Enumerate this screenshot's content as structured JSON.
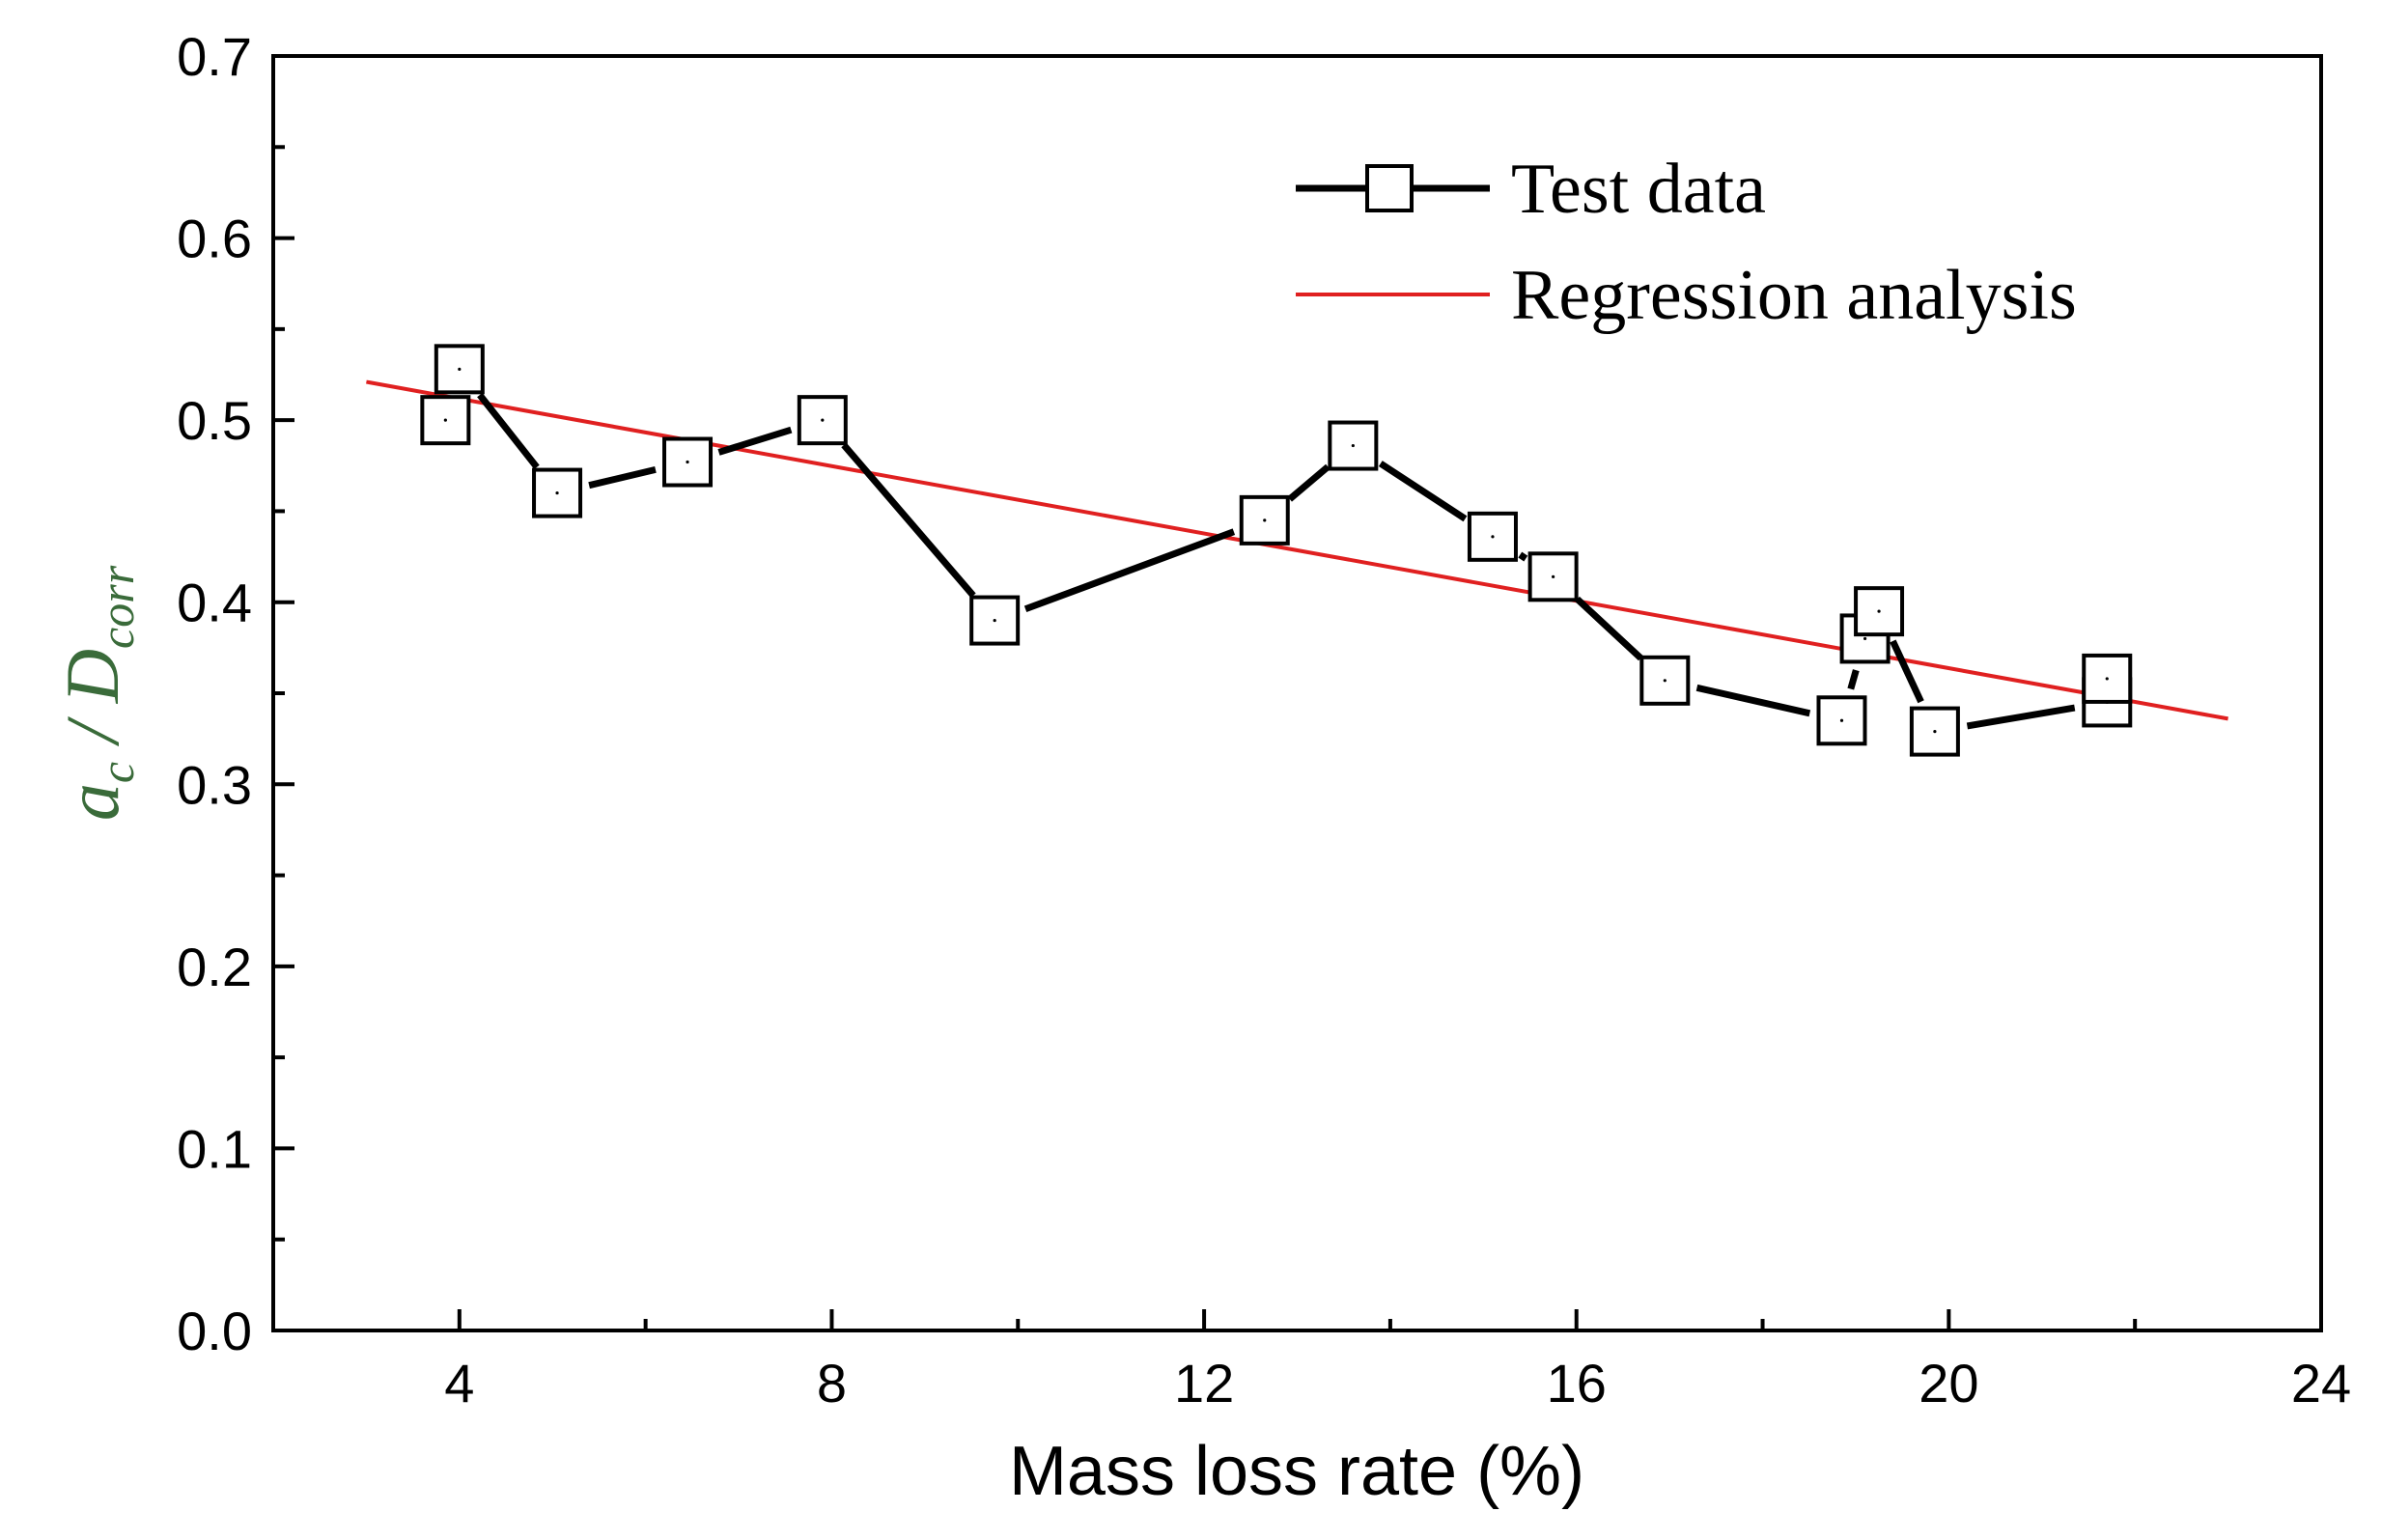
{
  "chart_data": {
    "type": "line",
    "title": "",
    "xlabel": "Mass loss rate (%)",
    "ylabel": {
      "base1": "a",
      "sub1": "c",
      "sep": " / ",
      "base2": "D",
      "sub2": "corr"
    },
    "xlim": [
      2,
      24
    ],
    "ylim": [
      0.0,
      0.7
    ],
    "xticks_major": [
      4,
      8,
      12,
      16,
      20,
      24
    ],
    "xticks_major_labels": [
      "4",
      "8",
      "12",
      "16",
      "20",
      "24"
    ],
    "xticks_minor": [
      6,
      10,
      14,
      18,
      22
    ],
    "yticks_major": [
      0.0,
      0.1,
      0.2,
      0.3,
      0.4,
      0.5,
      0.6,
      0.7
    ],
    "yticks_major_labels": [
      "0.0",
      "0.1",
      "0.2",
      "0.3",
      "0.4",
      "0.5",
      "0.6",
      "0.7"
    ],
    "yticks_minor": [
      0.05,
      0.15,
      0.25,
      0.35,
      0.45,
      0.55,
      0.65
    ],
    "grid": false,
    "legend_position": "top-right",
    "series": [
      {
        "name": "Test data",
        "kind": "line-marker",
        "marker": "open-square",
        "color": "#000000",
        "x": [
          3.85,
          4.0,
          5.05,
          6.45,
          7.9,
          9.75,
          12.65,
          13.6,
          15.1,
          15.75,
          16.95,
          18.85,
          19.1,
          19.25,
          19.85,
          21.7,
          21.7
        ],
        "y": [
          0.5,
          0.528,
          0.46,
          0.477,
          0.5,
          0.39,
          0.445,
          0.486,
          0.436,
          0.414,
          0.357,
          0.335,
          0.38,
          0.395,
          0.329,
          0.345,
          0.358
        ]
      },
      {
        "name": "Regression analysis",
        "kind": "line",
        "color": "#e02020",
        "x": [
          3.0,
          23.0
        ],
        "y": [
          0.521,
          0.336
        ]
      }
    ]
  }
}
